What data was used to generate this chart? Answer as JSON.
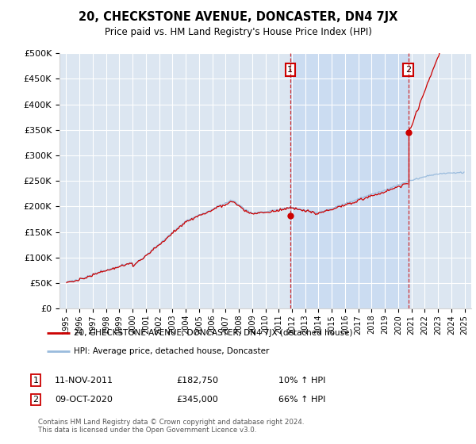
{
  "title": "20, CHECKSTONE AVENUE, DONCASTER, DN4 7JX",
  "subtitle": "Price paid vs. HM Land Registry's House Price Index (HPI)",
  "ylim": [
    0,
    500000
  ],
  "yticks": [
    0,
    50000,
    100000,
    150000,
    200000,
    250000,
    300000,
    350000,
    400000,
    450000,
    500000
  ],
  "plot_background": "#dce6f1",
  "shade_color": "#c5d9f1",
  "line_color_red": "#cc0000",
  "line_color_blue": "#99bbdd",
  "transaction1_x": 2011.87,
  "transaction1_y": 182750,
  "transaction2_x": 2020.77,
  "transaction2_y": 345000,
  "transaction1_date": "11-NOV-2011",
  "transaction1_price": "£182,750",
  "transaction1_hpi": "10% ↑ HPI",
  "transaction2_date": "09-OCT-2020",
  "transaction2_price": "£345,000",
  "transaction2_hpi": "66% ↑ HPI",
  "legend_label_red": "20, CHECKSTONE AVENUE, DONCASTER, DN4 7JX (detached house)",
  "legend_label_blue": "HPI: Average price, detached house, Doncaster",
  "footer": "Contains HM Land Registry data © Crown copyright and database right 2024.\nThis data is licensed under the Open Government Licence v3.0.",
  "xlim_start": 1994.5,
  "xlim_end": 2025.5
}
